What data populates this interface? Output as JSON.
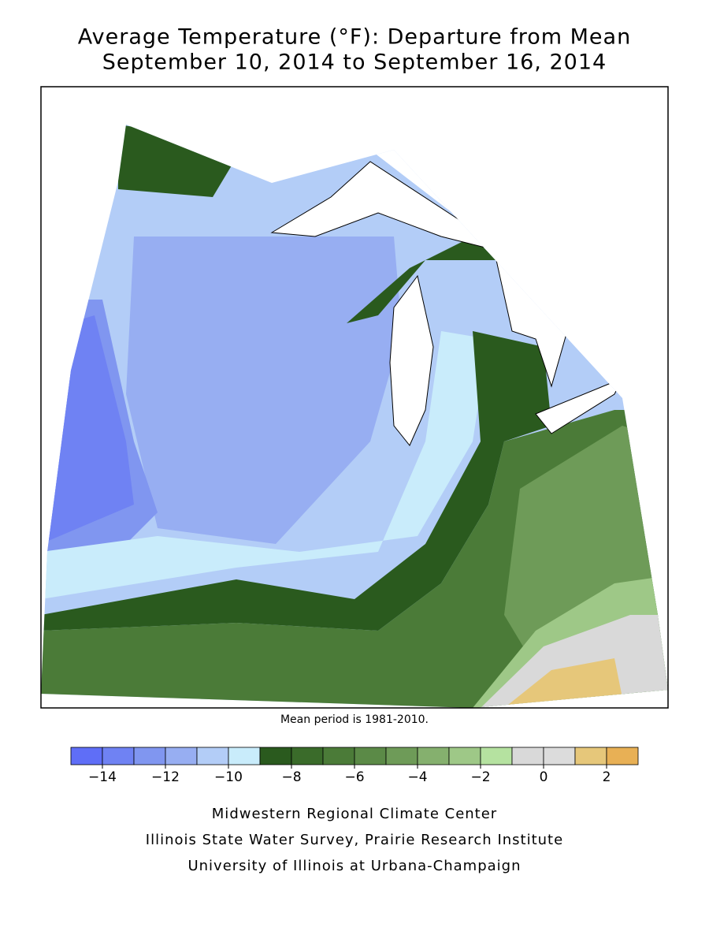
{
  "header": {
    "title": "Average Temperature (°F): Departure from Mean",
    "subtitle": "September 10, 2014 to September 16, 2014"
  },
  "map": {
    "note": "Mean period is 1981-2010."
  },
  "colorbar": {
    "bounds": [
      -15,
      -14,
      -13,
      -12,
      -11,
      -10,
      -9,
      -8,
      -7,
      -6,
      -5,
      -4,
      -3,
      -2,
      -1,
      0,
      1,
      2,
      3
    ],
    "colors": [
      "#5f6ef7",
      "#6f82f3",
      "#8096f0",
      "#97aef2",
      "#b3cdf7",
      "#c9ecfb",
      "#2a5a1e",
      "#3a6b2a",
      "#4b7b38",
      "#5b8a47",
      "#6e9b58",
      "#85b06e",
      "#9ec887",
      "#b5e2a0",
      "#d9d9d9",
      "#dcdcdc",
      "#e6c77a",
      "#e8b055"
    ],
    "ticks": [
      {
        "value": -14,
        "label": "−14"
      },
      {
        "value": -12,
        "label": "−12"
      },
      {
        "value": -10,
        "label": "−10"
      },
      {
        "value": -8,
        "label": "−8"
      },
      {
        "value": -6,
        "label": "−6"
      },
      {
        "value": -4,
        "label": "−4"
      },
      {
        "value": -2,
        "label": "−2"
      },
      0,
      2
    ]
  },
  "footer": {
    "lines": [
      "Midwestern Regional Climate Center",
      "Illinois State Water Survey, Prairie Research Institute",
      "University of Illinois at Urbana-Champaign"
    ]
  }
}
